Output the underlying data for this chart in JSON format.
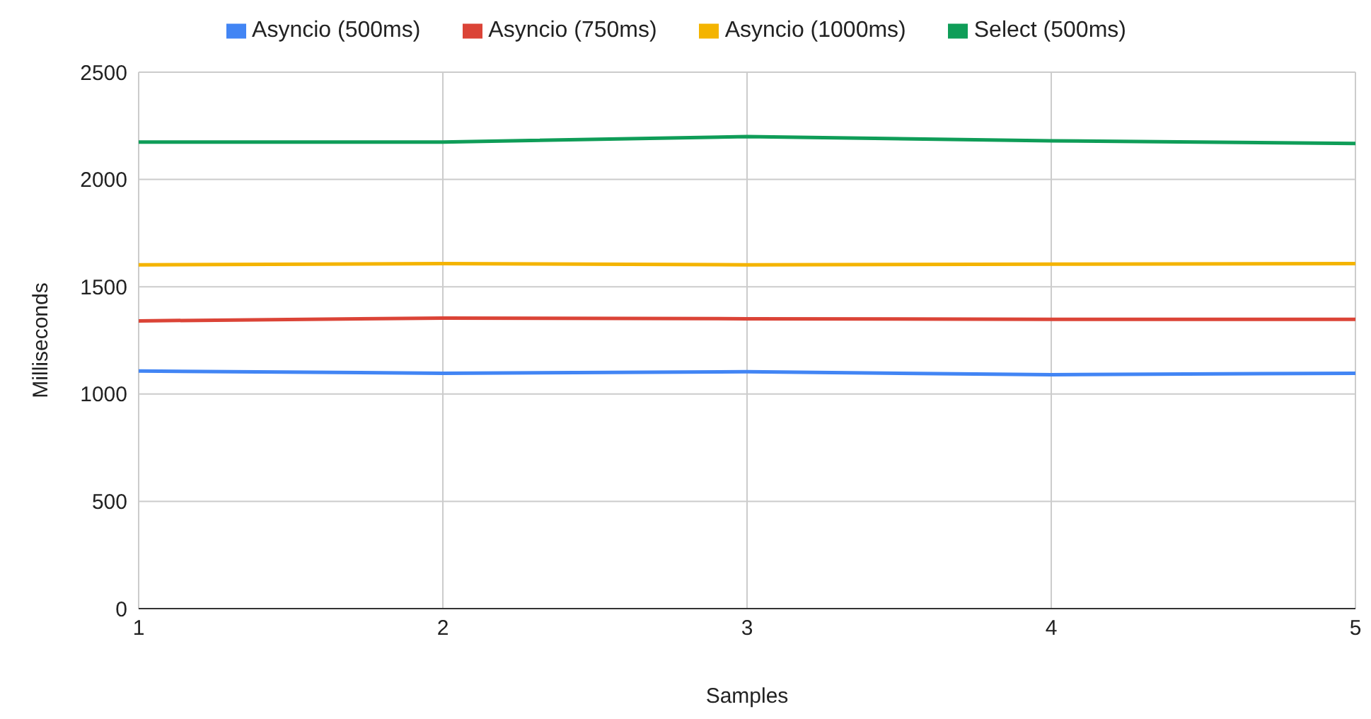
{
  "chart_data": {
    "type": "line",
    "xlabel": "Samples",
    "ylabel": "Milliseconds",
    "x": [
      1,
      2,
      3,
      4,
      5
    ],
    "xlim": [
      1,
      5
    ],
    "xticks": [
      1,
      2,
      3,
      4,
      5
    ],
    "ylim": [
      0,
      2500
    ],
    "yticks": [
      0,
      500,
      1000,
      1500,
      2000,
      2500
    ],
    "grid": true,
    "legend": "top",
    "marker": "none",
    "line_style": "solid",
    "series": [
      {
        "name": "Asyncio (500ms)",
        "color": "#4285f4",
        "values": [
          1107,
          1097,
          1104,
          1090,
          1097
        ]
      },
      {
        "name": "Asyncio (750ms)",
        "color": "#db4437",
        "values": [
          1341,
          1354,
          1351,
          1348,
          1348
        ]
      },
      {
        "name": "Asyncio (1000ms)",
        "color": "#f4b400",
        "values": [
          1602,
          1608,
          1602,
          1605,
          1608
        ]
      },
      {
        "name": "Select (500ms)",
        "color": "#0f9d58",
        "values": [
          2174,
          2174,
          2200,
          2180,
          2168
        ]
      }
    ]
  }
}
